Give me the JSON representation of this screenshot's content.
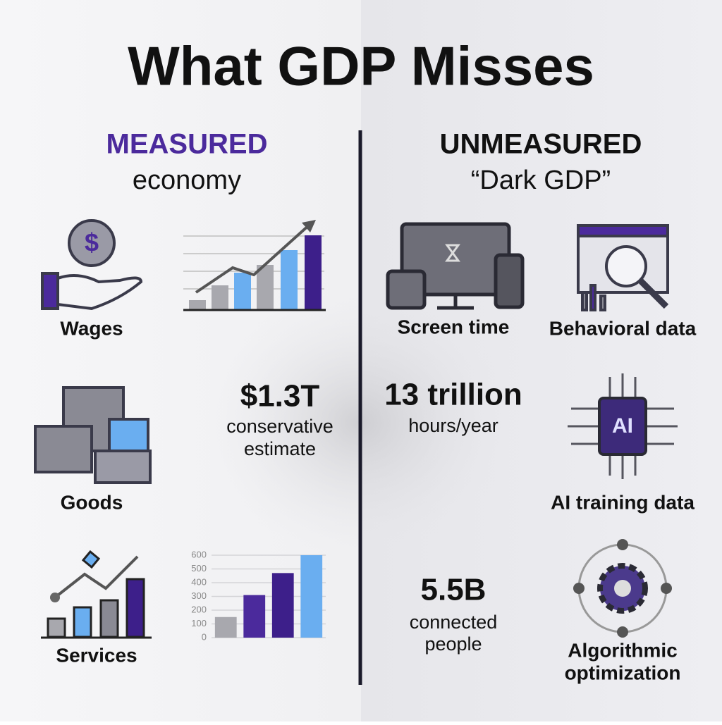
{
  "title": "What GDP Misses",
  "measured": {
    "heading": "MEASURED",
    "subheading": "economy",
    "items": [
      {
        "label_lines": [
          "Wages"
        ]
      },
      {
        "label_lines": [
          "Goods"
        ]
      },
      {
        "label_lines": [
          "Services"
        ]
      }
    ],
    "stats": [
      {
        "value": "$1.3T",
        "caption_lines": [
          "conservative",
          "estimate"
        ]
      }
    ]
  },
  "unmeasured": {
    "heading": "UNMEASURED",
    "subheading": "“Dark GDP”",
    "items": [
      {
        "label_lines": [
          "Screen time"
        ]
      },
      {
        "label_lines": [
          "Behavioral data"
        ]
      },
      {
        "label_lines": [
          "AI training data"
        ]
      },
      {
        "label_lines": [
          "Algorithmic",
          "optimization"
        ]
      }
    ],
    "stats": [
      {
        "value": "13 trillion",
        "caption_lines": [
          "hours/year"
        ]
      },
      {
        "value": "5.5B",
        "caption_lines": [
          "connected",
          "people"
        ]
      }
    ],
    "icon_text": "AI"
  },
  "services_chart": {
    "type": "bar",
    "ylim": [
      0,
      600
    ],
    "yticks": [
      0,
      100,
      200,
      300,
      400,
      500,
      600
    ],
    "values": [
      150,
      310,
      470,
      600
    ],
    "colors": [
      "#a8a8ae",
      "#4b2a9c",
      "#3d1f8a",
      "#6aaef0"
    ],
    "grid": true
  }
}
